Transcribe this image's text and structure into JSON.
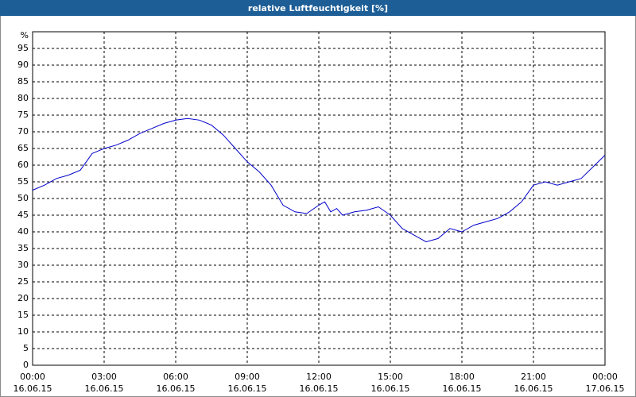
{
  "chart_data": {
    "type": "line",
    "title": "relative Luftfeuchtigkeit [%]",
    "x": [
      0,
      0.5,
      1,
      1.5,
      2,
      2.5,
      3,
      3.5,
      4,
      4.5,
      5,
      5.5,
      6,
      6.5,
      7,
      7.5,
      8,
      8.5,
      9,
      9.5,
      10,
      10.5,
      11,
      11.5,
      12,
      12.25,
      12.5,
      12.75,
      13,
      13.5,
      14,
      14.5,
      15,
      15.5,
      16,
      16.5,
      17,
      17.5,
      18,
      18.5,
      19,
      19.5,
      20,
      20.5,
      21,
      21.5,
      22,
      22.5,
      23,
      23.5,
      24
    ],
    "series": [
      {
        "name": "relative Luftfeuchtigkeit",
        "color": "#0000cc",
        "values": [
          52.5,
          54,
          56,
          57,
          58.5,
          63.5,
          65,
          66,
          67.5,
          69.5,
          71,
          72.5,
          73.5,
          74,
          73.5,
          72,
          69,
          65,
          61,
          58,
          54,
          48,
          46,
          45.5,
          48,
          49,
          46,
          47,
          45,
          46,
          46.5,
          47.5,
          45,
          41,
          39,
          37,
          38,
          41,
          40,
          42,
          43,
          44,
          46,
          49,
          54,
          55,
          54,
          55,
          56,
          59.5,
          63
        ]
      }
    ],
    "xlim": [
      0,
      24
    ],
    "xticks": [
      {
        "value": 0,
        "label": "00:00"
      },
      {
        "value": 3,
        "label": "03:00"
      },
      {
        "value": 6,
        "label": "06:00"
      },
      {
        "value": 9,
        "label": "09:00"
      },
      {
        "value": 12,
        "label": "12:00"
      },
      {
        "value": 15,
        "label": "15:00"
      },
      {
        "value": 18,
        "label": "18:00"
      },
      {
        "value": 21,
        "label": "21:00"
      },
      {
        "value": 24,
        "label": "00:00"
      }
    ],
    "xtick_dates": [
      "16.06.15",
      "16.06.15",
      "16.06.15",
      "16.06.15",
      "16.06.15",
      "16.06.15",
      "16.06.15",
      "16.06.15",
      "17.06.15"
    ],
    "ylim": [
      0,
      100
    ],
    "yticks": [
      0,
      5,
      10,
      15,
      20,
      25,
      30,
      35,
      40,
      45,
      50,
      55,
      60,
      65,
      70,
      75,
      80,
      85,
      90,
      95,
      {
        "value": 100,
        "label": "%"
      }
    ],
    "grid": true
  }
}
